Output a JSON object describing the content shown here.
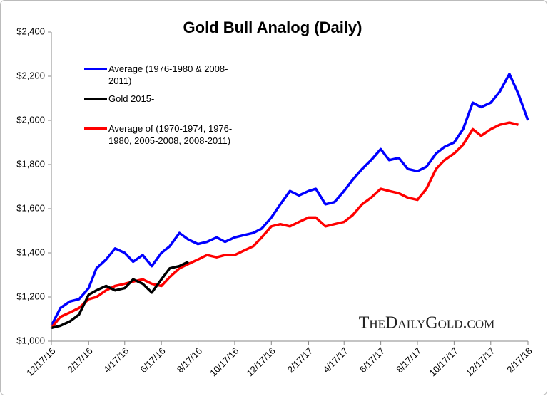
{
  "chart_data": {
    "type": "line",
    "title": "Gold Bull Analog (Daily)",
    "watermark": "TheDailyGold.com",
    "x": [
      "12/17/15",
      "1/1/16",
      "1/17/16",
      "2/1/16",
      "2/17/16",
      "3/1/16",
      "3/17/16",
      "4/1/16",
      "4/17/16",
      "5/1/16",
      "5/17/16",
      "6/1/16",
      "6/17/16",
      "7/1/16",
      "7/17/16",
      "8/1/16",
      "8/17/16",
      "9/1/16",
      "9/17/16",
      "10/1/16",
      "10/17/16",
      "11/1/16",
      "11/17/16",
      "12/1/16",
      "12/17/16",
      "1/1/17",
      "1/17/17",
      "2/1/17",
      "2/17/17",
      "3/1/17",
      "3/17/17",
      "4/1/17",
      "4/17/17",
      "5/1/17",
      "5/17/17",
      "6/1/17",
      "6/17/17",
      "7/1/17",
      "7/17/17",
      "8/1/17",
      "8/17/17",
      "9/1/17",
      "9/17/17",
      "10/1/17",
      "10/17/17",
      "11/1/17",
      "11/17/17",
      "12/1/17",
      "12/17/17",
      "1/1/18",
      "1/17/18",
      "2/1/18",
      "2/17/18"
    ],
    "series": [
      {
        "name": "Average (1976-1980 & 2008-2011)",
        "color": "#0000ff",
        "values": [
          1070,
          1150,
          1180,
          1190,
          1240,
          1330,
          1370,
          1420,
          1400,
          1360,
          1390,
          1340,
          1400,
          1430,
          1490,
          1460,
          1440,
          1450,
          1470,
          1450,
          1470,
          1480,
          1490,
          1510,
          1560,
          1620,
          1680,
          1660,
          1680,
          1690,
          1620,
          1630,
          1680,
          1730,
          1780,
          1820,
          1870,
          1820,
          1830,
          1780,
          1770,
          1790,
          1850,
          1880,
          1900,
          1960,
          2080,
          2060,
          2080,
          2130,
          2210,
          2120,
          2000
        ]
      },
      {
        "name": "Gold 2015-",
        "color": "#000000",
        "values": [
          1060,
          1070,
          1090,
          1120,
          1210,
          1230,
          1250,
          1230,
          1240,
          1280,
          1260,
          1220,
          1280,
          1330,
          1340,
          1360,
          null,
          null,
          null,
          null,
          null,
          null,
          null,
          null,
          null,
          null,
          null,
          null,
          null,
          null,
          null,
          null,
          null,
          null,
          null,
          null,
          null,
          null,
          null,
          null,
          null,
          null,
          null,
          null,
          null,
          null,
          null,
          null,
          null,
          null,
          null,
          null,
          null
        ]
      },
      {
        "name": "Average of (1970-1974, 1976-1980, 2005-2008, 2008-2011)",
        "color": "#ff0000",
        "values": [
          1060,
          1110,
          1130,
          1150,
          1190,
          1200,
          1230,
          1250,
          1260,
          1270,
          1280,
          1260,
          1250,
          1290,
          1330,
          1350,
          1370,
          1390,
          1380,
          1390,
          1390,
          1410,
          1430,
          1470,
          1520,
          1530,
          1520,
          1540,
          1560,
          1560,
          1520,
          1530,
          1540,
          1570,
          1620,
          1650,
          1690,
          1680,
          1670,
          1650,
          1640,
          1690,
          1780,
          1820,
          1850,
          1890,
          1960,
          1930,
          1960,
          1980,
          1990,
          1980,
          null
        ]
      }
    ],
    "xlim": [
      "12/17/15",
      "2/17/18"
    ],
    "xticks": [
      "12/17/15",
      "2/17/16",
      "4/17/16",
      "6/17/16",
      "8/17/16",
      "10/17/16",
      "12/17/16",
      "2/17/17",
      "4/17/17",
      "6/17/17",
      "8/17/17",
      "10/17/17",
      "12/17/17",
      "2/17/18"
    ],
    "ylim": [
      1000,
      2400
    ],
    "yticks": [
      {
        "value": 1000,
        "label": "$1,000"
      },
      {
        "value": 1200,
        "label": "$1,200"
      },
      {
        "value": 1400,
        "label": "$1,400"
      },
      {
        "value": 1600,
        "label": "$1,600"
      },
      {
        "value": 1800,
        "label": "$1,800"
      },
      {
        "value": 2000,
        "label": "$2,000"
      },
      {
        "value": 2200,
        "label": "$2,200"
      },
      {
        "value": 2400,
        "label": "$2,400"
      }
    ],
    "grid": false,
    "legend": "upper left"
  }
}
